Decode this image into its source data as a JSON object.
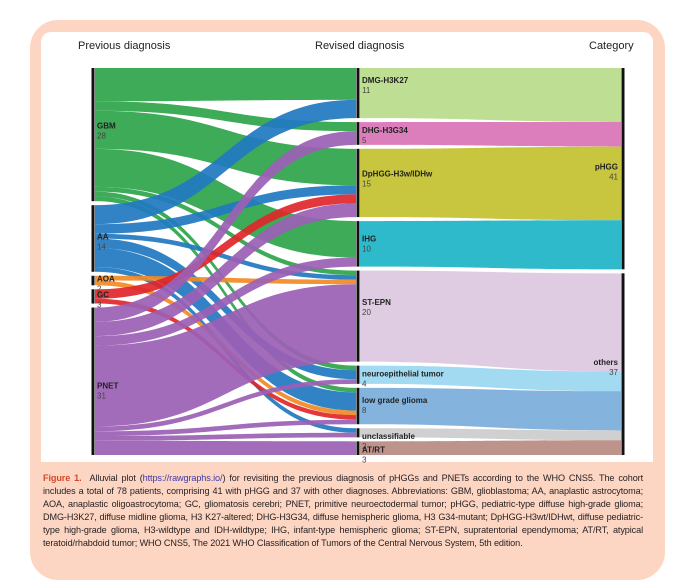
{
  "figure": {
    "column_titles": {
      "left": "Previous diagnosis",
      "middle": "Revised diagnosis",
      "right": "Category"
    },
    "caption": {
      "label": "Figure 1.",
      "before_link": "Alluvial plot (",
      "link": "https://rawgraphs.io/",
      "after_link": ") for revisiting the previous diagnosis of pHGGs and PNETs according to the WHO CNS5. The cohort includes a total of 78 patients, comprising 41 with pHGG and 37 with other diagnoses. Abbreviations: GBM, glioblastoma; AA, anaplastic astrocytoma; AOA, anaplastic oligoastrocytoma; GC, gliomatosis cerebri; PNET, primitive neuroectodermal tumor; pHGG, pediatric-type diffuse high-grade glioma; DMG-H3K27, diffuse midline glioma, H3 K27-altered; DHG-H3G34, diffuse hemispheric glioma, H3 G34-mutant; DpHGG-H3wt/IDHwt, diffuse pediatric-type high-grade glioma, H3-wildtype and IDH-wildtype; IHG, infant-type hemispheric glioma; ST-EPN, supratentorial ependymoma; AT/RT, atypical teratoid/rhabdoid tumor; WHO CNS5, The 2021 WHO Classification of Tumors of the Central Nervous System, 5th edition."
    },
    "colors": {
      "frame": "#fdd5c3",
      "caption_label": "#d2492a",
      "link": "#3b3aa6"
    }
  },
  "chart_data": {
    "type": "alluvial",
    "total": 78,
    "columns": [
      {
        "title": "Previous diagnosis",
        "nodes": [
          {
            "name": "GBM",
            "value": 28,
            "color": "#2ca44a"
          },
          {
            "name": "AA",
            "value": 14,
            "color": "#1f78c1"
          },
          {
            "name": "AOA",
            "value": 2,
            "color": "#f28a24"
          },
          {
            "name": "GC",
            "value": 3,
            "color": "#e0262a"
          },
          {
            "name": "PNET",
            "value": 31,
            "color": "#9b5fb5"
          }
        ]
      },
      {
        "title": "Revised diagnosis",
        "nodes": [
          {
            "name": "DMG-H3K27",
            "value": 11,
            "color": "#b9dc8a"
          },
          {
            "name": "DHG-H3G34",
            "value": 5,
            "color": "#d873b5"
          },
          {
            "name": "DpHGG-H3w/IDHw",
            "value": 15,
            "color": "#c2c12e"
          },
          {
            "name": "IHG",
            "value": 10,
            "color": "#1db4c8"
          },
          {
            "name": "ST-EPN",
            "value": 20,
            "color": "#dcc8e0"
          },
          {
            "name": "neuroepithelial tumor",
            "value": 4,
            "color": "#9ad7f0"
          },
          {
            "name": "low grade glioma",
            "value": 8,
            "color": "#7aaedb"
          },
          {
            "name": "unclassifiable",
            "value": 2,
            "color": "#cccccc"
          },
          {
            "name": "AT/RT",
            "value": 3,
            "color": "#b88a82"
          }
        ]
      },
      {
        "title": "Category",
        "nodes": [
          {
            "name": "pHGG",
            "value": 41
          },
          {
            "name": "others",
            "value": 37
          }
        ]
      }
    ],
    "flows_previous_to_revised": [
      {
        "source": "GBM",
        "target": "DMG-H3K27",
        "value": 7
      },
      {
        "source": "AA",
        "target": "DMG-H3K27",
        "value": 4
      },
      {
        "source": "GBM",
        "target": "DHG-H3G34",
        "value": 2
      },
      {
        "source": "PNET",
        "target": "DHG-H3G34",
        "value": 3
      },
      {
        "source": "GBM",
        "target": "DpHGG-H3w/IDHw",
        "value": 8
      },
      {
        "source": "AA",
        "target": "DpHGG-H3w/IDHw",
        "value": 2
      },
      {
        "source": "GC",
        "target": "DpHGG-H3w/IDHw",
        "value": 2
      },
      {
        "source": "PNET",
        "target": "DpHGG-H3w/IDHw",
        "value": 3
      },
      {
        "source": "GBM",
        "target": "IHG",
        "value": 8
      },
      {
        "source": "PNET",
        "target": "IHG",
        "value": 2
      },
      {
        "source": "GBM",
        "target": "ST-EPN",
        "value": 1
      },
      {
        "source": "AA",
        "target": "ST-EPN",
        "value": 1
      },
      {
        "source": "AOA",
        "target": "ST-EPN",
        "value": 1
      },
      {
        "source": "PNET",
        "target": "ST-EPN",
        "value": 17
      },
      {
        "source": "GBM",
        "target": "neuroepithelial tumor",
        "value": 1
      },
      {
        "source": "AA",
        "target": "neuroepithelial tumor",
        "value": 2
      },
      {
        "source": "PNET",
        "target": "neuroepithelial tumor",
        "value": 1
      },
      {
        "source": "GBM",
        "target": "low grade glioma",
        "value": 1
      },
      {
        "source": "AA",
        "target": "low grade glioma",
        "value": 4
      },
      {
        "source": "AOA",
        "target": "low grade glioma",
        "value": 1
      },
      {
        "source": "GC",
        "target": "low grade glioma",
        "value": 1
      },
      {
        "source": "PNET",
        "target": "low grade glioma",
        "value": 1
      },
      {
        "source": "AA",
        "target": "unclassifiable",
        "value": 1
      },
      {
        "source": "PNET",
        "target": "unclassifiable",
        "value": 1
      },
      {
        "source": "PNET",
        "target": "AT/RT",
        "value": 3
      }
    ],
    "flows_revised_to_category": [
      {
        "source": "DMG-H3K27",
        "target": "pHGG",
        "value": 11
      },
      {
        "source": "DHG-H3G34",
        "target": "pHGG",
        "value": 5
      },
      {
        "source": "DpHGG-H3w/IDHw",
        "target": "pHGG",
        "value": 15
      },
      {
        "source": "IHG",
        "target": "pHGG",
        "value": 10
      },
      {
        "source": "ST-EPN",
        "target": "others",
        "value": 20
      },
      {
        "source": "neuroepithelial tumor",
        "target": "others",
        "value": 4
      },
      {
        "source": "low grade glioma",
        "target": "others",
        "value": 8
      },
      {
        "source": "unclassifiable",
        "target": "others",
        "value": 2
      },
      {
        "source": "AT/RT",
        "target": "others",
        "value": 3
      }
    ]
  }
}
